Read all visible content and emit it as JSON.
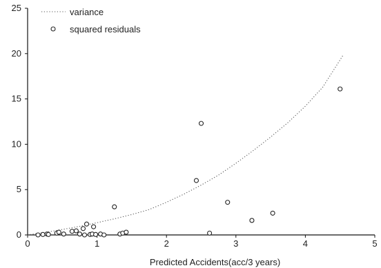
{
  "chart_data": {
    "type": "scatter",
    "title": "",
    "xlabel": "Predicted Accidents(acc/3 years)",
    "ylabel": "",
    "xlim": [
      0,
      5
    ],
    "ylim": [
      0,
      25
    ],
    "x_ticks": [
      "0",
      "1",
      "2",
      "3",
      "4",
      "5"
    ],
    "y_ticks": [
      "0",
      "5",
      "10",
      "15",
      "20",
      "25"
    ],
    "grid": false,
    "legend_position": "top-left",
    "series": [
      {
        "name": "variance",
        "kind": "line",
        "style": "dotted",
        "color": "#555555",
        "x": [
          0,
          0.25,
          0.5,
          0.75,
          1.0,
          1.25,
          1.5,
          1.75,
          2.0,
          2.25,
          2.5,
          2.75,
          3.0,
          3.25,
          3.5,
          3.75,
          4.0,
          4.25,
          4.55
        ],
        "y": [
          0,
          0.28,
          0.6,
          0.95,
          1.35,
          1.78,
          2.25,
          2.8,
          3.6,
          4.5,
          5.5,
          6.6,
          7.9,
          9.3,
          10.8,
          12.4,
          14.2,
          16.3,
          19.9
        ]
      },
      {
        "name": "squared residuals",
        "kind": "scatter",
        "marker": "open-circle",
        "color": "#222222",
        "x": [
          0.15,
          0.22,
          0.28,
          0.3,
          0.42,
          0.45,
          0.52,
          0.64,
          0.7,
          0.75,
          0.8,
          0.82,
          0.85,
          0.9,
          0.93,
          0.95,
          0.98,
          1.05,
          1.1,
          1.25,
          1.33,
          1.37,
          1.42,
          2.43,
          2.5,
          2.62,
          2.88,
          3.23,
          3.53,
          4.5
        ],
        "y": [
          0.0,
          0.05,
          0.1,
          0.05,
          0.2,
          0.3,
          0.1,
          0.4,
          0.45,
          0.1,
          0.7,
          0.0,
          1.2,
          0.05,
          0.1,
          0.9,
          0.05,
          0.1,
          0.0,
          3.1,
          0.1,
          0.2,
          0.3,
          6.0,
          12.3,
          0.2,
          3.6,
          1.6,
          2.4,
          16.1
        ]
      }
    ]
  }
}
